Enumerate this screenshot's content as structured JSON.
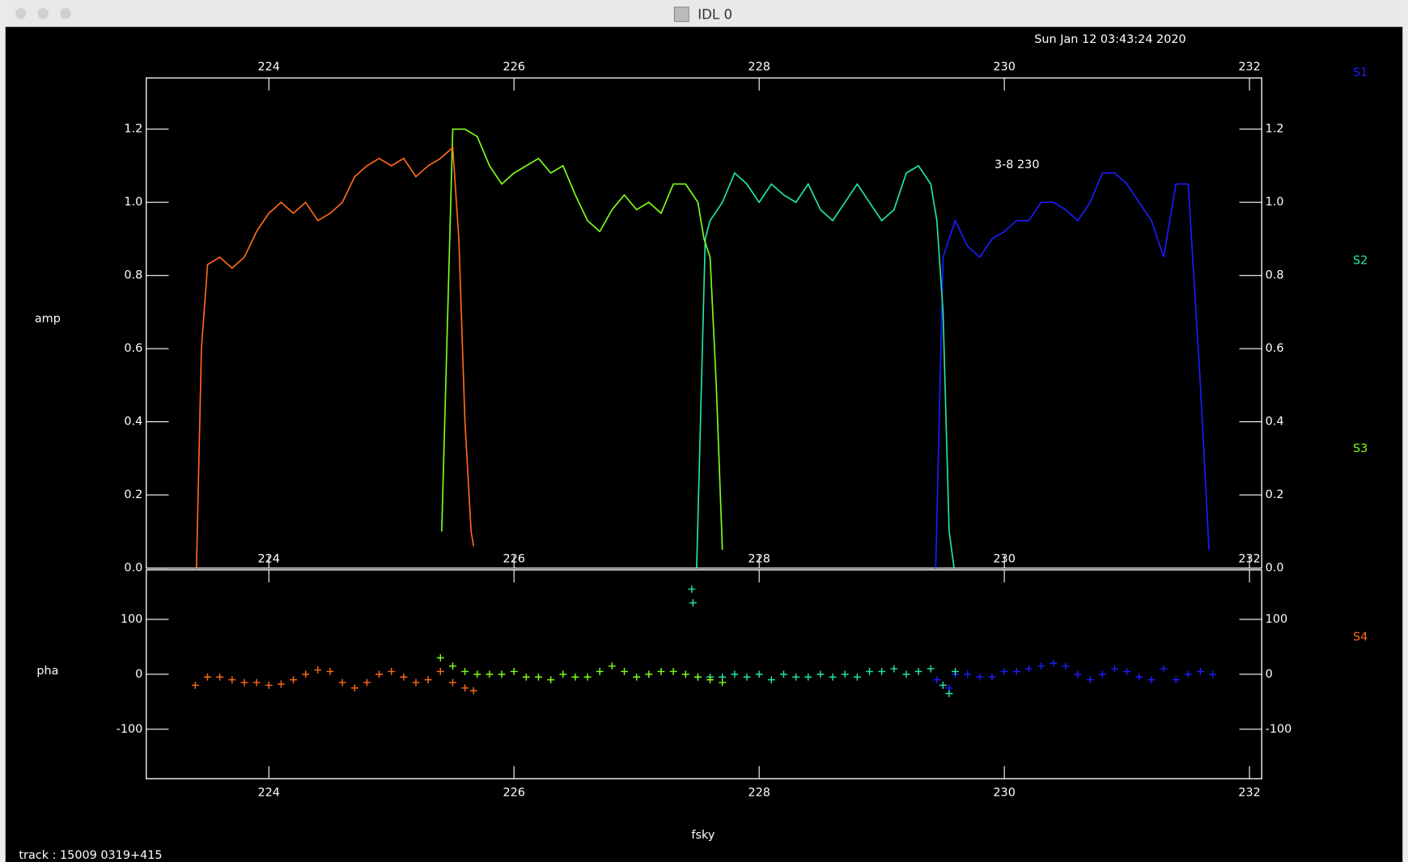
{
  "window": {
    "title": "IDL 0"
  },
  "chart_data": [
    {
      "type": "line",
      "title": "Sun Jan 12 03:43:24 2020",
      "y_label": "amp",
      "annotation": "3-8 230",
      "xlim": [
        223,
        232.1
      ],
      "xticks": [
        224,
        226,
        228,
        230,
        232
      ],
      "ylim": [
        0,
        1.34
      ],
      "yticks": [
        {
          "value": 0,
          "label": "0.0"
        },
        0.2,
        0.4,
        0.6,
        0.8,
        {
          "value": 1,
          "label": "1.0"
        },
        1.2
      ],
      "series": [
        {
          "name": "S1",
          "color": "#1c1cff",
          "x": [
            229.44,
            229.5,
            229.6,
            229.7,
            229.8,
            229.9,
            230.0,
            230.1,
            230.2,
            230.3,
            230.4,
            230.5,
            230.6,
            230.7,
            230.8,
            230.9,
            231.0,
            231.1,
            231.2,
            231.3,
            231.4,
            231.5,
            231.6,
            231.67
          ],
          "values": [
            0.0,
            0.85,
            0.95,
            0.88,
            0.85,
            0.9,
            0.92,
            0.95,
            0.95,
            1.0,
            1.0,
            0.98,
            0.95,
            1.0,
            1.08,
            1.08,
            1.05,
            1.0,
            0.95,
            0.85,
            1.05,
            1.05,
            0.5,
            0.05
          ]
        },
        {
          "name": "S2",
          "color": "#22e6a8",
          "x": [
            227.49,
            227.56,
            227.6,
            227.7,
            227.8,
            227.9,
            228.0,
            228.1,
            228.2,
            228.3,
            228.4,
            228.5,
            228.6,
            228.7,
            228.8,
            228.9,
            229.0,
            229.1,
            229.2,
            229.3,
            229.4,
            229.45,
            229.5,
            229.55,
            229.59
          ],
          "values": [
            0.0,
            0.9,
            0.95,
            1.0,
            1.08,
            1.05,
            1.0,
            1.05,
            1.02,
            1.0,
            1.05,
            0.98,
            0.95,
            1.0,
            1.05,
            1.0,
            0.95,
            0.98,
            1.08,
            1.1,
            1.05,
            0.95,
            0.7,
            0.1,
            0.0
          ]
        },
        {
          "name": "S3",
          "color": "#80ff1a",
          "x": [
            225.41,
            225.5,
            225.6,
            225.7,
            225.8,
            225.9,
            226.0,
            226.1,
            226.2,
            226.3,
            226.4,
            226.5,
            226.6,
            226.7,
            226.8,
            226.9,
            227.0,
            227.1,
            227.2,
            227.3,
            227.4,
            227.5,
            227.55,
            227.6,
            227.65,
            227.7
          ],
          "values": [
            0.1,
            1.2,
            1.2,
            1.18,
            1.1,
            1.05,
            1.08,
            1.1,
            1.12,
            1.08,
            1.1,
            1.02,
            0.95,
            0.92,
            0.98,
            1.02,
            0.98,
            1.0,
            0.97,
            1.05,
            1.05,
            1.0,
            0.9,
            0.85,
            0.5,
            0.05
          ]
        },
        {
          "name": "S4",
          "color": "#ff6a1a",
          "x": [
            223.41,
            223.45,
            223.5,
            223.6,
            223.7,
            223.8,
            223.9,
            224.0,
            224.1,
            224.2,
            224.3,
            224.4,
            224.5,
            224.6,
            224.7,
            224.8,
            224.9,
            225.0,
            225.1,
            225.2,
            225.3,
            225.4,
            225.5,
            225.55,
            225.6,
            225.65,
            225.67
          ],
          "values": [
            0.0,
            0.6,
            0.83,
            0.85,
            0.82,
            0.85,
            0.92,
            0.97,
            1.0,
            0.97,
            1.0,
            0.95,
            0.97,
            1.0,
            1.07,
            1.1,
            1.12,
            1.1,
            1.12,
            1.07,
            1.1,
            1.12,
            1.15,
            0.9,
            0.4,
            0.1,
            0.06
          ]
        }
      ]
    },
    {
      "type": "scatter",
      "y_label": "pha",
      "x_label": "fsky",
      "footer": "track : 15009 0319+415",
      "xlim": [
        223,
        232.1
      ],
      "xticks": [
        224,
        226,
        228,
        230,
        232
      ],
      "ylim": [
        -190,
        190
      ],
      "yticks": [
        -100,
        0,
        100
      ],
      "series": [
        {
          "color": "#1c1cff",
          "x": [
            229.45,
            229.5,
            229.55,
            229.6,
            229.7,
            229.8,
            229.9,
            230.0,
            230.1,
            230.2,
            230.3,
            230.4,
            230.5,
            230.6,
            230.7,
            230.8,
            230.9,
            231.0,
            231.1,
            231.2,
            231.3,
            231.4,
            231.5,
            231.6,
            231.7
          ],
          "values": [
            -10,
            -20,
            -25,
            0,
            0,
            -5,
            -5,
            5,
            5,
            10,
            15,
            20,
            15,
            0,
            -10,
            0,
            10,
            5,
            -5,
            -10,
            10,
            -10,
            0,
            5,
            0
          ]
        },
        {
          "color": "#22e6a8",
          "x": [
            227.45,
            227.46,
            227.5,
            227.6,
            227.7,
            227.8,
            227.9,
            228.0,
            228.1,
            228.2,
            228.3,
            228.4,
            228.5,
            228.6,
            228.7,
            228.8,
            228.9,
            229.0,
            229.1,
            229.2,
            229.3,
            229.4,
            229.5,
            229.55,
            229.6
          ],
          "values": [
            155,
            130,
            -5,
            -5,
            -5,
            0,
            -5,
            0,
            -10,
            0,
            -5,
            -5,
            0,
            -5,
            0,
            -5,
            5,
            5,
            10,
            0,
            5,
            10,
            -20,
            -35,
            5
          ]
        },
        {
          "color": "#80ff1a",
          "x": [
            225.4,
            225.5,
            225.6,
            225.7,
            225.8,
            225.9,
            226.0,
            226.1,
            226.2,
            226.3,
            226.4,
            226.5,
            226.6,
            226.7,
            226.8,
            226.9,
            227.0,
            227.1,
            227.2,
            227.3,
            227.4,
            227.5,
            227.6,
            227.7
          ],
          "values": [
            30,
            15,
            5,
            0,
            0,
            0,
            5,
            -5,
            -5,
            -10,
            0,
            -5,
            -5,
            5,
            15,
            5,
            -5,
            0,
            5,
            5,
            0,
            -5,
            -10,
            -15
          ]
        },
        {
          "color": "#ff6a1a",
          "x": [
            223.4,
            223.5,
            223.6,
            223.7,
            223.8,
            223.9,
            224.0,
            224.1,
            224.2,
            224.3,
            224.4,
            224.5,
            224.6,
            224.7,
            224.8,
            224.9,
            225.0,
            225.1,
            225.2,
            225.3,
            225.4,
            225.5,
            225.6,
            225.67
          ],
          "values": [
            -20,
            -5,
            -5,
            -10,
            -15,
            -15,
            -20,
            -18,
            -10,
            0,
            8,
            5,
            -15,
            -25,
            -15,
            0,
            5,
            -5,
            -15,
            -10,
            5,
            -15,
            -25,
            -30
          ]
        }
      ]
    }
  ]
}
